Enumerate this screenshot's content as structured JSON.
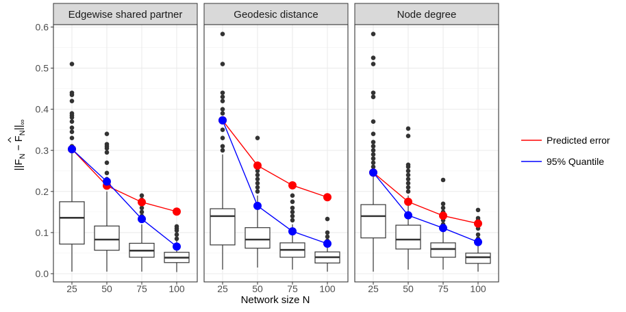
{
  "chart_data": {
    "type": "box",
    "xlabel": "Network size N",
    "ylabel_parts": [
      "||F",
      "N",
      " − F",
      "N",
      "||",
      "∞"
    ],
    "ylim": [
      0,
      0.6
    ],
    "yticks": [
      0.0,
      0.1,
      0.2,
      0.3,
      0.4,
      0.5,
      0.6
    ],
    "ytick_labels": [
      "0.0",
      "0.1",
      "0.2",
      "0.3",
      "0.4",
      "0.5",
      "0.6"
    ],
    "categories": [
      "25",
      "50",
      "75",
      "100"
    ],
    "grid": true,
    "legend_position": "right",
    "legend": [
      {
        "label": "Predicted error",
        "color": "#ff0000"
      },
      {
        "label": "95% Quantile",
        "color": "#0000ff"
      }
    ],
    "panels": [
      {
        "title": "Edgewise shared partner",
        "boxes": [
          {
            "min": 0.005,
            "q1": 0.072,
            "median": 0.136,
            "q3": 0.175,
            "max": 0.3,
            "outliers": [
              0.31,
              0.33,
              0.345,
              0.355,
              0.37,
              0.38,
              0.385,
              0.39,
              0.42,
              0.435,
              0.44,
              0.51
            ]
          },
          {
            "min": 0.005,
            "q1": 0.057,
            "median": 0.083,
            "q3": 0.116,
            "max": 0.2,
            "outliers": [
              0.21,
              0.215,
              0.23,
              0.245,
              0.27,
              0.295,
              0.305,
              0.31,
              0.315,
              0.34
            ]
          },
          {
            "min": 0.005,
            "q1": 0.04,
            "median": 0.056,
            "q3": 0.074,
            "max": 0.12,
            "outliers": [
              0.13,
              0.14,
              0.15,
              0.16,
              0.17,
              0.18,
              0.19
            ]
          },
          {
            "min": 0.004,
            "q1": 0.027,
            "median": 0.039,
            "q3": 0.052,
            "max": 0.08,
            "outliers": [
              0.085,
              0.095,
              0.105,
              0.11,
              0.115
            ]
          }
        ],
        "predicted": [
          0.303,
          0.214,
          0.174,
          0.151
        ],
        "quantile": [
          0.303,
          0.224,
          0.133,
          0.066
        ]
      },
      {
        "title": "Geodesic distance",
        "boxes": [
          {
            "min": 0.01,
            "q1": 0.07,
            "median": 0.14,
            "q3": 0.158,
            "max": 0.29,
            "outliers": [
              0.3,
              0.31,
              0.33,
              0.35,
              0.37,
              0.39,
              0.4,
              0.42,
              0.43,
              0.44,
              0.51,
              0.583
            ]
          },
          {
            "min": 0.015,
            "q1": 0.062,
            "median": 0.083,
            "q3": 0.112,
            "max": 0.19,
            "outliers": [
              0.2,
              0.21,
              0.22,
              0.23,
              0.24,
              0.25,
              0.26,
              0.33
            ]
          },
          {
            "min": 0.01,
            "q1": 0.04,
            "median": 0.058,
            "q3": 0.075,
            "max": 0.12,
            "outliers": [
              0.13,
              0.14,
              0.15,
              0.16,
              0.175,
              0.19
            ]
          },
          {
            "min": 0.005,
            "q1": 0.026,
            "median": 0.04,
            "q3": 0.053,
            "max": 0.07,
            "outliers": [
              0.08,
              0.09,
              0.1,
              0.133
            ]
          }
        ],
        "predicted": [
          0.373,
          0.263,
          0.215,
          0.186
        ],
        "quantile": [
          0.373,
          0.165,
          0.103,
          0.073
        ]
      },
      {
        "title": "Node degree",
        "boxes": [
          {
            "min": 0.005,
            "q1": 0.087,
            "median": 0.14,
            "q3": 0.168,
            "max": 0.24,
            "outliers": [
              0.25,
              0.26,
              0.27,
              0.28,
              0.29,
              0.3,
              0.31,
              0.32,
              0.34,
              0.37,
              0.43,
              0.44,
              0.51,
              0.525,
              0.583
            ]
          },
          {
            "min": 0.01,
            "q1": 0.06,
            "median": 0.083,
            "q3": 0.118,
            "max": 0.19,
            "outliers": [
              0.2,
              0.21,
              0.22,
              0.23,
              0.24,
              0.25,
              0.26,
              0.265,
              0.335,
              0.353
            ]
          },
          {
            "min": 0.01,
            "q1": 0.04,
            "median": 0.06,
            "q3": 0.075,
            "max": 0.11,
            "outliers": [
              0.12,
              0.13,
              0.14,
              0.15,
              0.16,
              0.17,
              0.228
            ]
          },
          {
            "min": 0.005,
            "q1": 0.025,
            "median": 0.04,
            "q3": 0.05,
            "max": 0.075,
            "outliers": [
              0.085,
              0.095,
              0.11,
              0.12,
              0.13,
              0.135,
              0.155
            ]
          }
        ],
        "predicted": [
          0.246,
          0.175,
          0.141,
          0.122
        ],
        "quantile": [
          0.246,
          0.142,
          0.111,
          0.077
        ]
      }
    ]
  }
}
